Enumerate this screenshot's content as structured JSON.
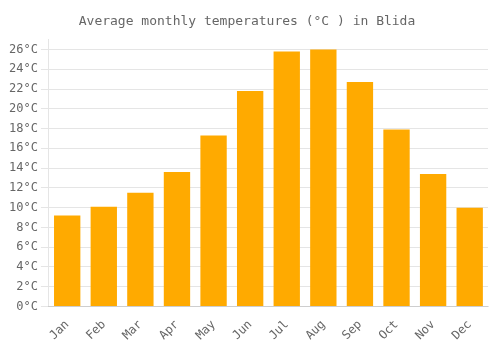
{
  "chart_data": {
    "type": "bar",
    "title": "Average monthly temperatures (°C ) in Blida",
    "categories": [
      "Jan",
      "Feb",
      "Mar",
      "Apr",
      "May",
      "Jun",
      "Jul",
      "Aug",
      "Sep",
      "Oct",
      "Nov",
      "Dec"
    ],
    "values": [
      9.2,
      10.1,
      11.5,
      13.6,
      17.3,
      21.8,
      25.8,
      26.0,
      22.7,
      17.9,
      13.4,
      10.0
    ],
    "color": "#FFAA00",
    "ylim": [
      0,
      27
    ],
    "yticks": [
      {
        "value": 0,
        "label": "0°C"
      },
      {
        "value": 2,
        "label": "2°C"
      },
      {
        "value": 4,
        "label": "4°C"
      },
      {
        "value": 6,
        "label": "6°C"
      },
      {
        "value": 8,
        "label": "8°C"
      },
      {
        "value": 10,
        "label": "10°C"
      },
      {
        "value": 12,
        "label": "12°C"
      },
      {
        "value": 14,
        "label": "14°C"
      },
      {
        "value": 16,
        "label": "16°C"
      },
      {
        "value": 18,
        "label": "18°C"
      },
      {
        "value": 20,
        "label": "20°C"
      },
      {
        "value": 22,
        "label": "22°C"
      },
      {
        "value": 24,
        "label": "24°C"
      },
      {
        "value": 26,
        "label": "26°C"
      }
    ],
    "grid": true
  }
}
